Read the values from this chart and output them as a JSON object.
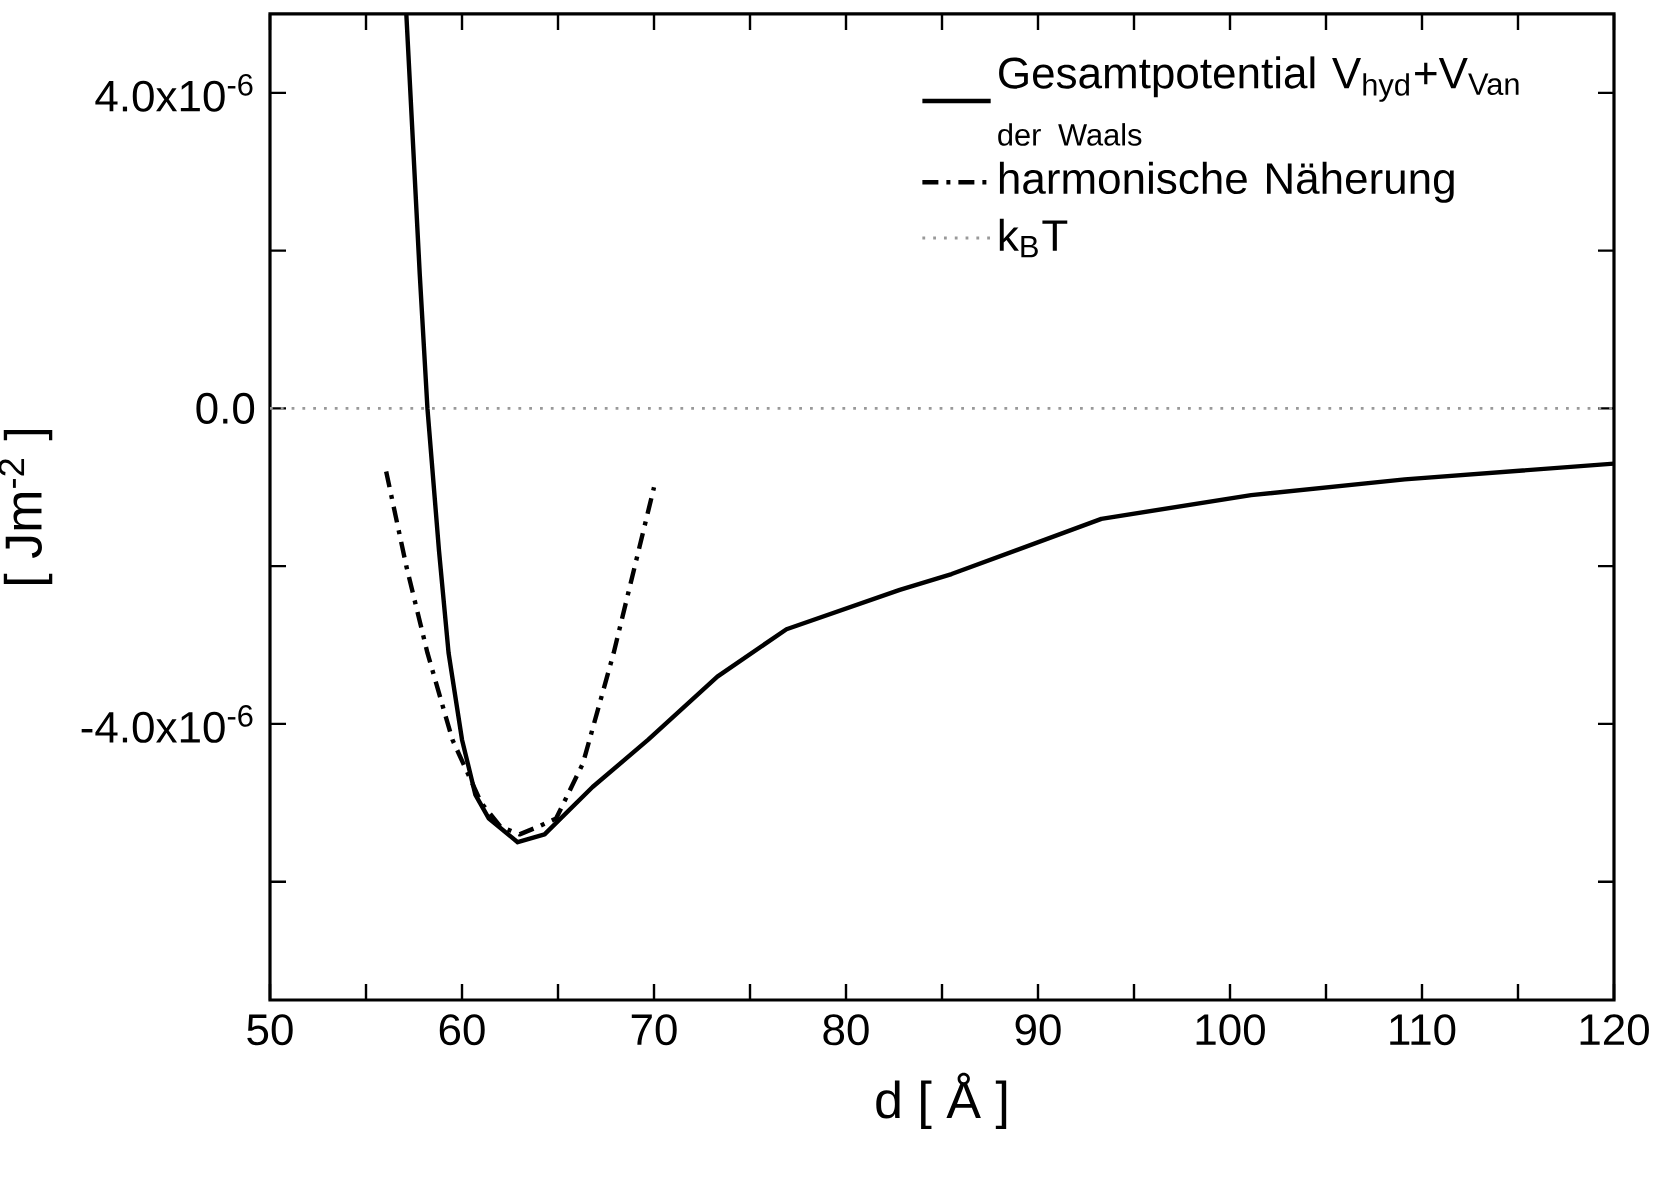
{
  "chart_data": {
    "type": "line",
    "xlabel": "d [ Å ]",
    "ylabel": "[ Jm$^{-2}$ ]",
    "xlim": [
      50,
      120
    ],
    "ylim": [
      -7.5e-06,
      5e-06
    ],
    "xticks": [
      50,
      {
        "value": 55,
        "label": null
      },
      60,
      {
        "value": 65,
        "label": null
      },
      70,
      {
        "value": 75,
        "label": null
      },
      80,
      {
        "value": 85,
        "label": null
      },
      90,
      {
        "value": 95,
        "label": null
      },
      100,
      {
        "value": 105,
        "label": null
      },
      110,
      {
        "value": 115,
        "label": null
      },
      120
    ],
    "yticks": [
      {
        "value": -6e-06,
        "label": null
      },
      {
        "value": -4e-06,
        "label": "-4.0x10$^{-6}$"
      },
      {
        "value": -2e-06,
        "label": null
      },
      {
        "value": 0,
        "label": "0.0"
      },
      {
        "value": 2e-06,
        "label": null
      },
      {
        "value": 4e-06,
        "label": "4.0x10$^{-6}$"
      }
    ],
    "legend": "top right",
    "marker": "none",
    "series": [
      {
        "name": "Gesamtpotential V$_{hyd}$+V$_{Van}$ $_{der}$ $_{Waals}$",
        "color": "#000000",
        "line_style": "solid",
        "x": [
          57.1,
          57.8,
          58.2,
          58.8,
          59.3,
          60.0,
          60.7,
          61.4,
          62.9,
          64.3,
          66.8,
          69.7,
          73.3,
          76.9,
          82.8,
          85.5,
          93.3,
          101.1,
          109.1,
          120
        ],
        "values": [
          5e-06,
          1.7e-06,
          0.0,
          -1.8e-06,
          -3.1e-06,
          -4.2e-06,
          -4.9e-06,
          -5.2e-06,
          -5.5e-06,
          -5.4e-06,
          -4.8e-06,
          -4.2e-06,
          -3.4e-06,
          -2.8e-06,
          -2.3e-06,
          -2.1e-06,
          -1.4e-06,
          -1.1e-06,
          -9e-07,
          -7e-07
        ]
      },
      {
        "name": "harmonische Näherung",
        "color": "#000000",
        "line_style": "dashed",
        "x": [
          56.05,
          57.1,
          58.2,
          59.5,
          61.0,
          62.0,
          63.0,
          64.0,
          64.9,
          66.3,
          67.9,
          69.0,
          70.0
        ],
        "values": [
          -8e-07,
          -2e-06,
          -3.1e-06,
          -4.2e-06,
          -5e-06,
          -5.3e-06,
          -5.4e-06,
          -5.3e-06,
          -5.2e-06,
          -4.5e-06,
          -3.1e-06,
          -2e-06,
          -1e-06
        ]
      },
      {
        "name": "k$_{B}$T",
        "color": "#999999",
        "line_style": "dotted",
        "x": [
          50,
          120
        ],
        "values": [
          0,
          0
        ]
      }
    ]
  }
}
